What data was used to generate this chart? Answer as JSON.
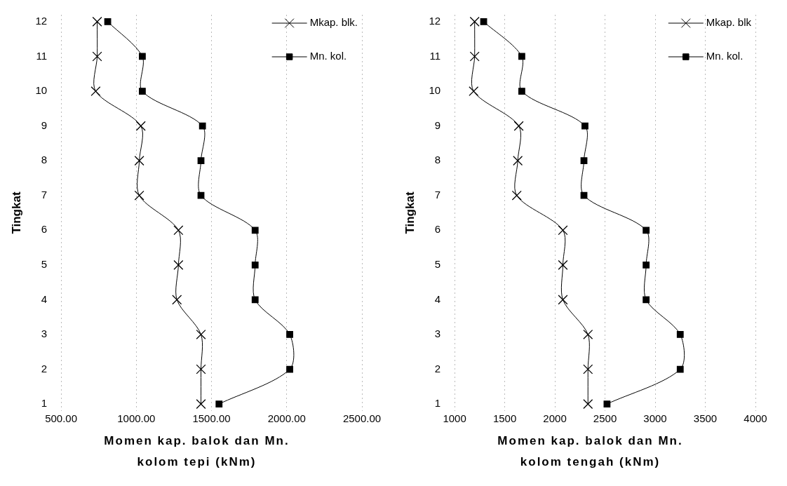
{
  "chart_data": [
    {
      "type": "line",
      "xlabel": "Momen kap. balok dan Mn. kolom tepi (kNm)",
      "ylabel": "Tingkat",
      "xlim": [
        500,
        2500
      ],
      "xticks": [
        {
          "value": 500,
          "label": "500.00"
        },
        {
          "value": 1000,
          "label": "1000.00"
        },
        {
          "value": 1500,
          "label": "1500.00"
        },
        {
          "value": 2000,
          "label": "2000.00"
        },
        {
          "value": 2500,
          "label": "2500.00"
        }
      ],
      "ylim": [
        0.8,
        12.2
      ],
      "yticks": [
        1,
        2,
        3,
        4,
        5,
        6,
        7,
        8,
        9,
        10,
        11,
        12
      ],
      "grid": "x",
      "legend": "top right",
      "series": [
        {
          "name": "Mkap. blk.",
          "color": "#000000",
          "marker": "cross",
          "x": [
            1430,
            1430,
            1430,
            1270,
            1280,
            1280,
            1020,
            1020,
            1030,
            730,
            740,
            740
          ],
          "values": [
            1,
            2,
            3,
            4,
            5,
            6,
            7,
            8,
            9,
            10,
            11,
            12
          ]
        },
        {
          "name": "Mn. kol.",
          "color": "#000000",
          "marker": "square",
          "x": [
            1550,
            2020,
            2020,
            1790,
            1790,
            1790,
            1430,
            1430,
            1440,
            1040,
            1040,
            810
          ],
          "values": [
            1,
            2,
            3,
            4,
            5,
            6,
            7,
            8,
            9,
            10,
            11,
            12
          ]
        }
      ]
    },
    {
      "type": "line",
      "xlabel": "Momen kap. balok dan Mn. kolom tengah (kNm)",
      "ylabel": "Tingkat",
      "xlim": [
        1000,
        4000
      ],
      "xticks": [
        1000,
        1500,
        2000,
        2500,
        3000,
        3500,
        4000
      ],
      "ylim": [
        0.8,
        12.2
      ],
      "yticks": [
        1,
        2,
        3,
        4,
        5,
        6,
        7,
        8,
        9,
        10,
        11,
        12
      ],
      "grid": "x",
      "legend": "top right",
      "series": [
        {
          "name": "Mkap. blk",
          "color": "#000000",
          "marker": "cross",
          "x": [
            2330,
            2330,
            2330,
            2080,
            2080,
            2080,
            1620,
            1630,
            1640,
            1190,
            1200,
            1200
          ],
          "values": [
            1,
            2,
            3,
            4,
            5,
            6,
            7,
            8,
            9,
            10,
            11,
            12
          ]
        },
        {
          "name": "Mn. kol.",
          "color": "#000000",
          "marker": "square",
          "x": [
            2520,
            3250,
            3250,
            2910,
            2910,
            2910,
            2290,
            2290,
            2300,
            1670,
            1670,
            1290
          ],
          "values": [
            1,
            2,
            3,
            4,
            5,
            6,
            7,
            8,
            9,
            10,
            11,
            12
          ]
        }
      ]
    }
  ]
}
